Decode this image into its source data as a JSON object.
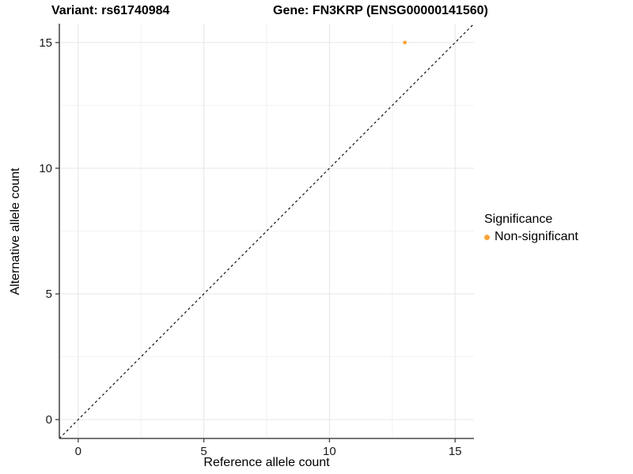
{
  "figure": {
    "title_left": "Variant: rs61740984",
    "title_right": "Gene: FN3KRP (ENSG00000141560)"
  },
  "chart_data": {
    "type": "scatter",
    "title": "Variant: rs61740984   Gene: FN3KRP (ENSG00000141560)",
    "xlabel": "Reference allele count",
    "ylabel": "Alternative allele count",
    "xlim": [
      -0.75,
      15.75
    ],
    "ylim": [
      -0.75,
      15.75
    ],
    "xticks": [
      0,
      5,
      10,
      15
    ],
    "yticks": [
      0,
      5,
      10,
      15
    ],
    "minor_gridlines": [
      2.5,
      7.5,
      12.5
    ],
    "grid": "major-and-minor-light-gray",
    "identity_line": {
      "style": "dashed",
      "color": "#000000",
      "from": [
        -0.75,
        -0.75
      ],
      "to": [
        15.75,
        15.75
      ]
    },
    "series": [
      {
        "name": "Non-significant",
        "color": "#FAA43A",
        "points": [
          {
            "x": 13,
            "y": 15
          }
        ]
      }
    ],
    "legend": {
      "title": "Significance",
      "position": "right",
      "entries": [
        {
          "label": "Non-significant",
          "color": "#FAA43A",
          "marker": "circle"
        }
      ]
    }
  },
  "colors": {
    "accent_point": "#FAA43A",
    "axis_line": "#4a4a4a",
    "tick_text": "#1a1a1a",
    "grid_major": "#e6e6e6",
    "grid_minor": "#f2f2f2",
    "background": "#ffffff"
  }
}
